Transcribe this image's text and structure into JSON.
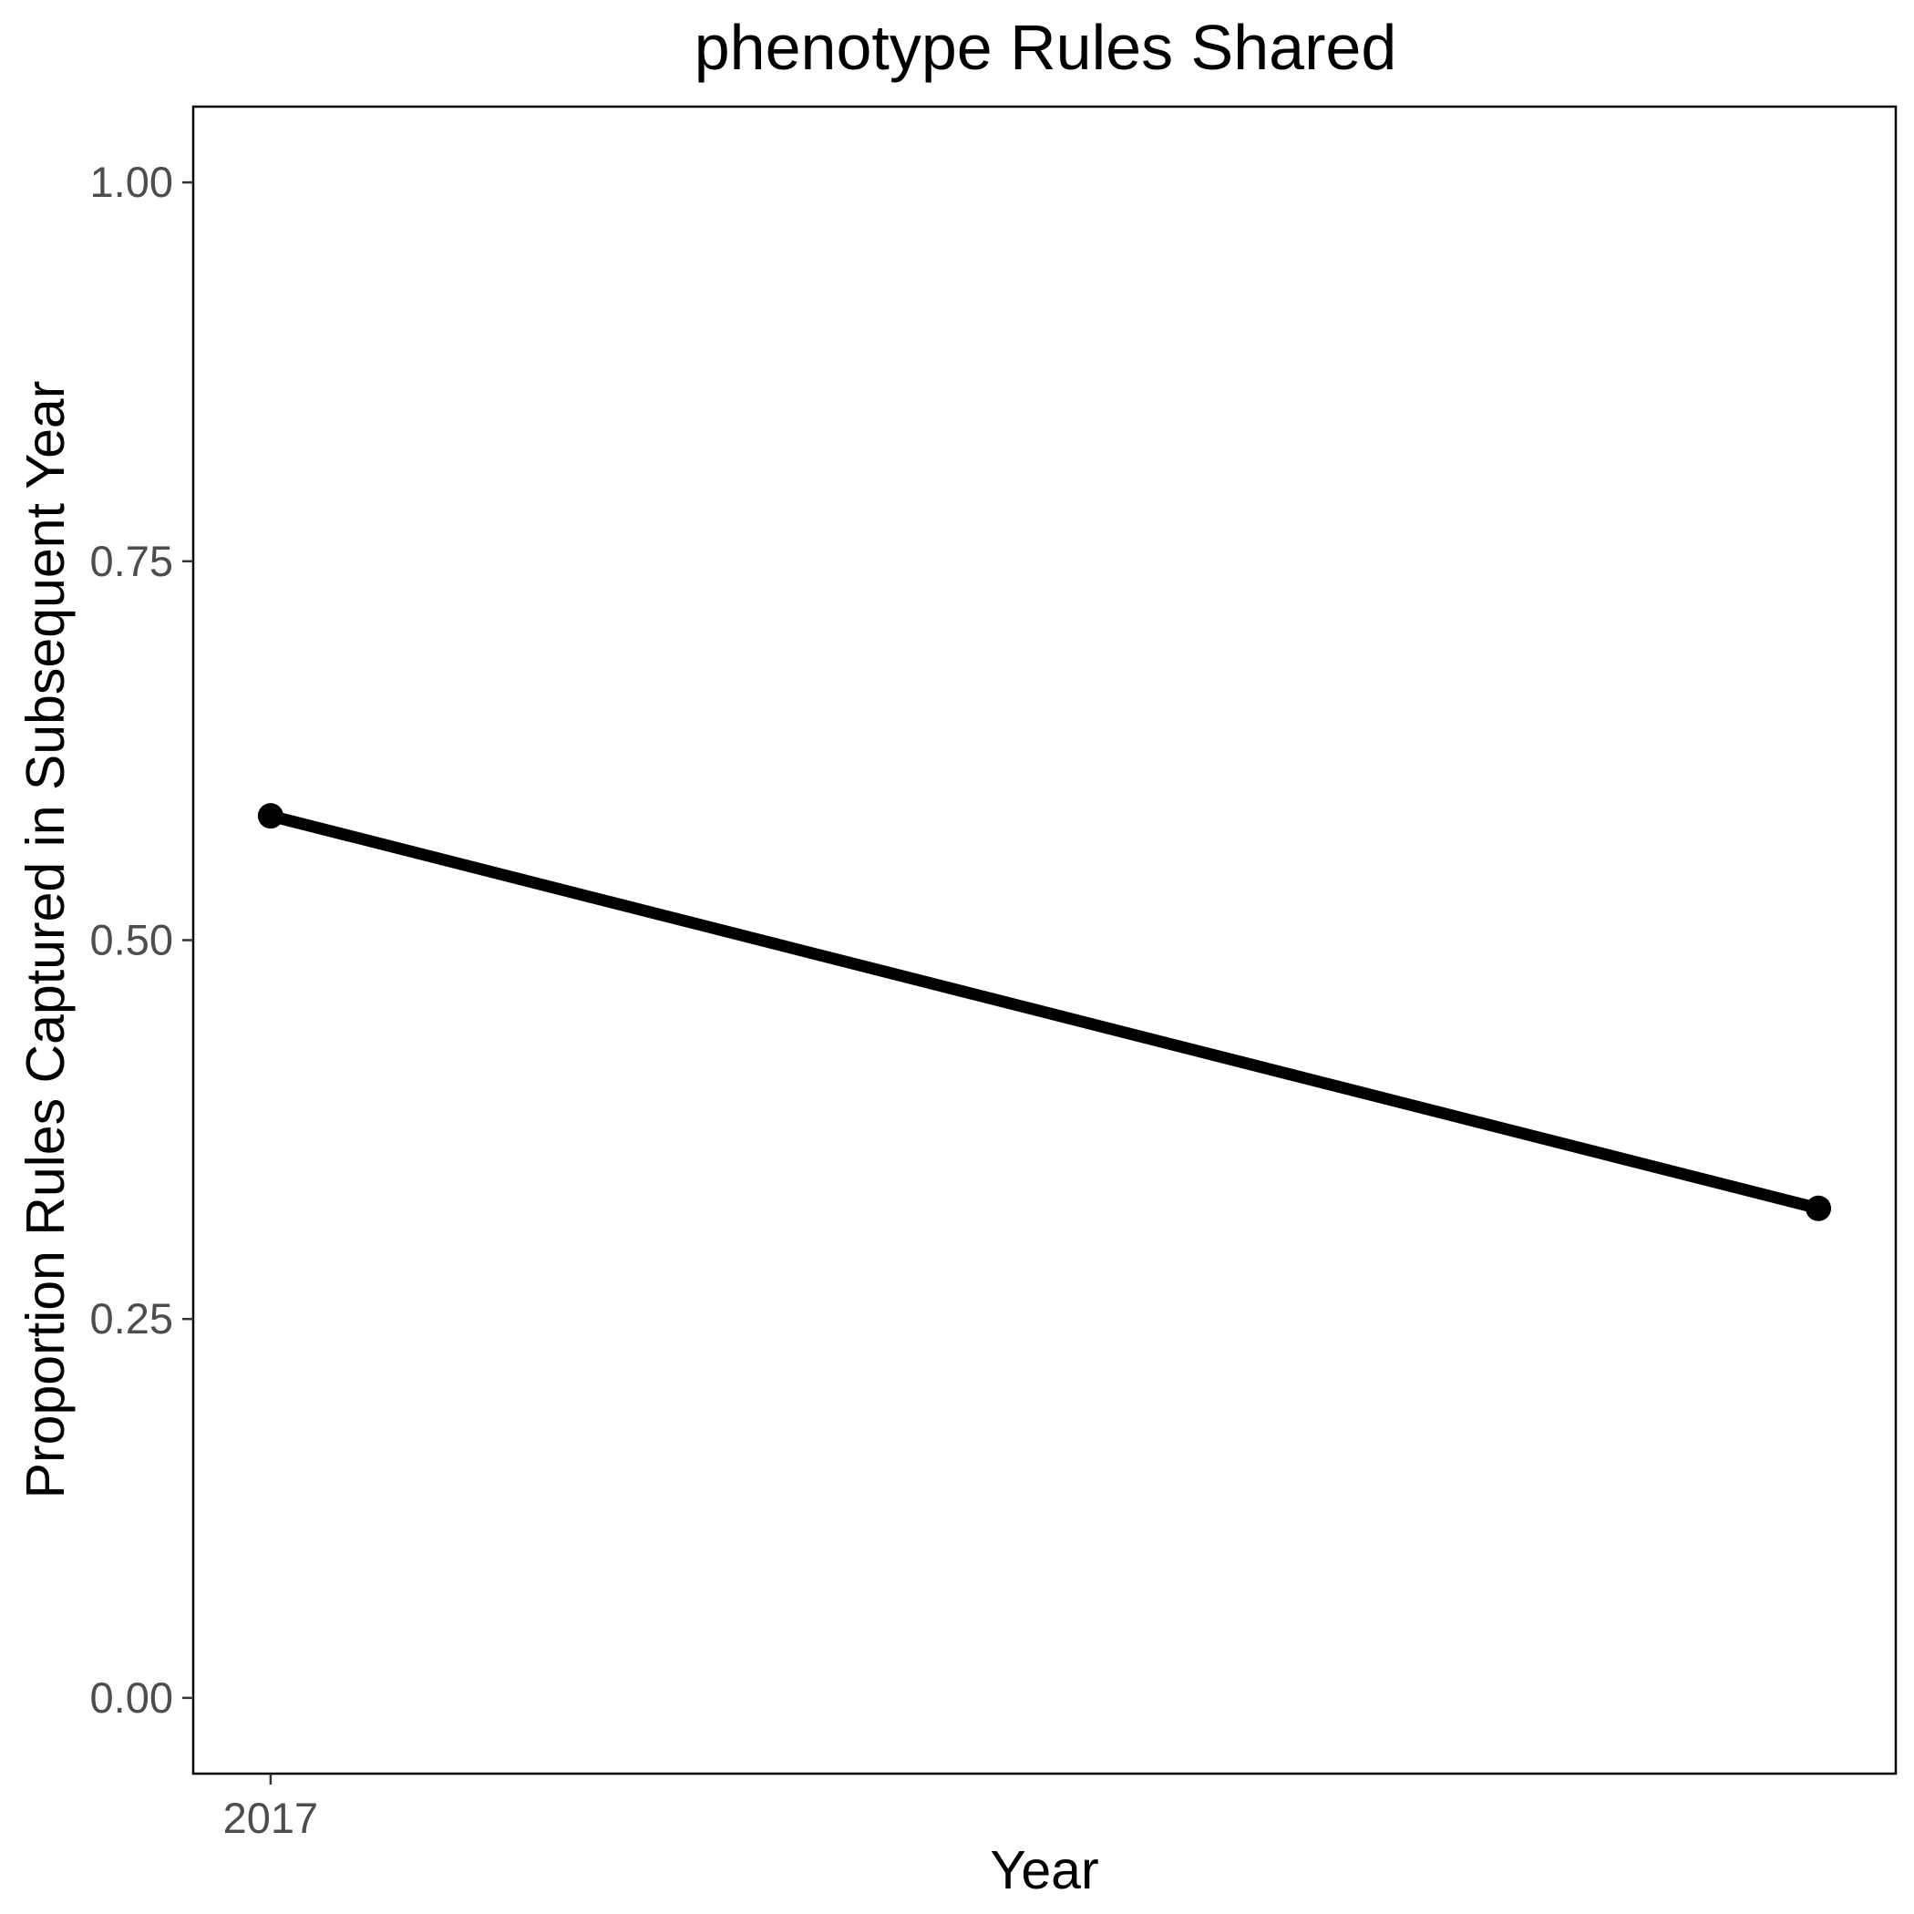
{
  "chart_data": {
    "type": "line",
    "title": "phenotype Rules Shared",
    "xlabel": "Year",
    "ylabel": "Proportion Rules Captured in Subsequent Year",
    "x_tick_labels": [
      "2017"
    ],
    "y_tick_labels": [
      "0.00",
      "0.25",
      "0.50",
      "0.75",
      "1.00"
    ],
    "y_ticks": [
      0,
      0.25,
      0.5,
      0.75,
      1.0
    ],
    "ylim": [
      -0.05,
      1.05
    ],
    "xlim": [
      2016.95,
      2018.05
    ],
    "grid": false,
    "legend": "none",
    "line_color": "#000000",
    "series": [
      {
        "x": [
          2017,
          2018
        ],
        "y": [
          0.582,
          0.323
        ]
      }
    ]
  }
}
